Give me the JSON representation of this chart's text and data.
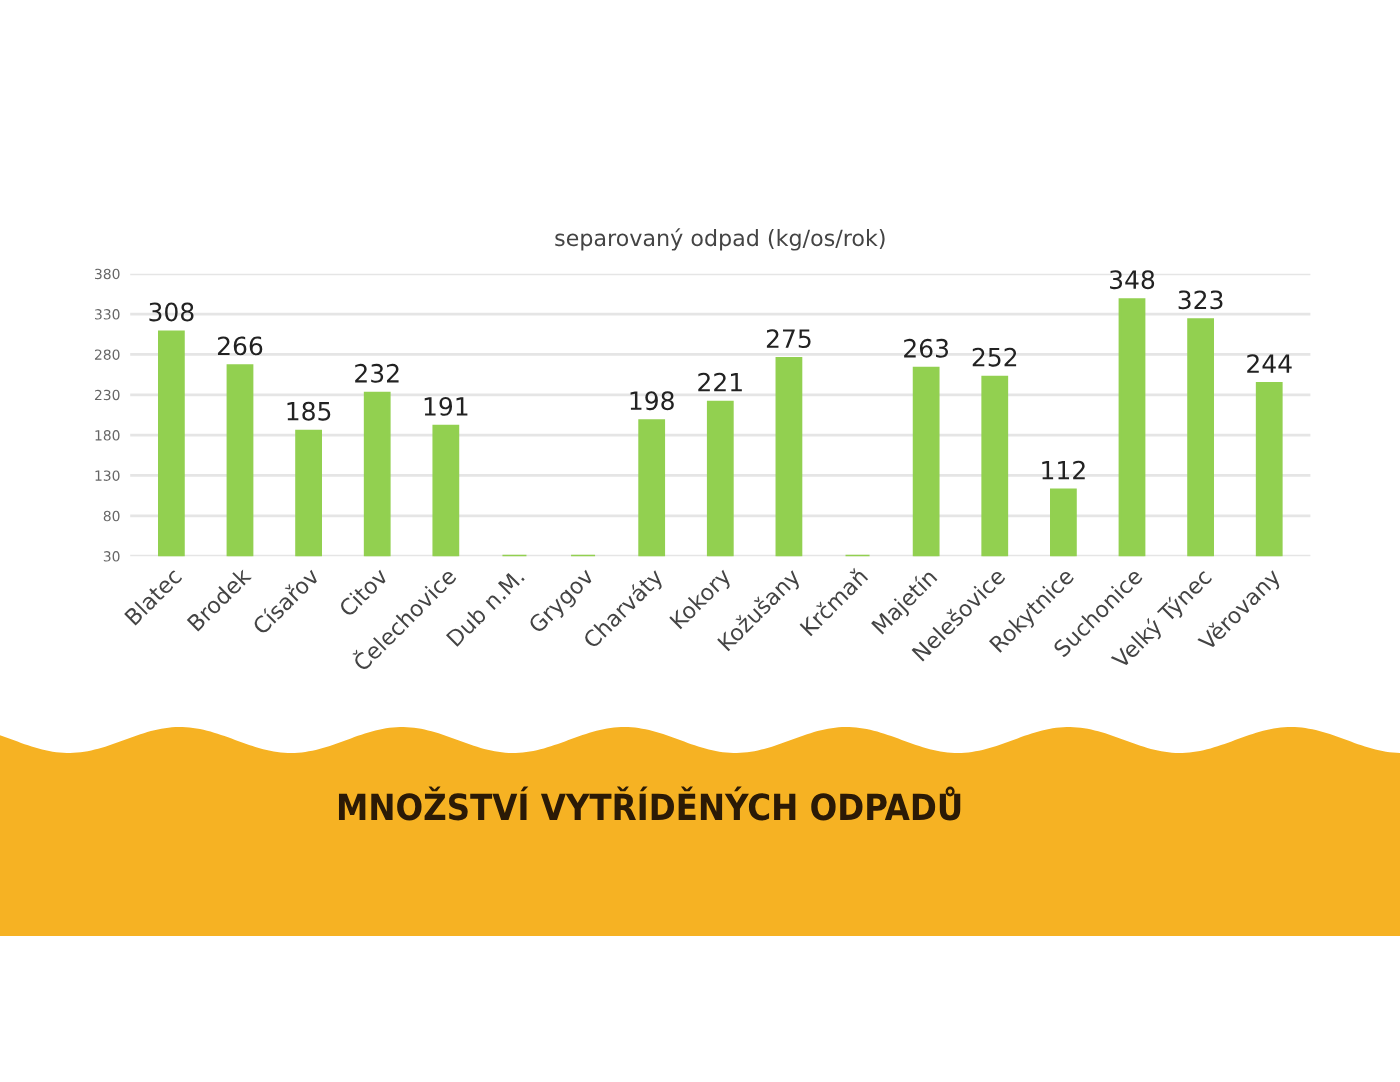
{
  "chart_data": {
    "type": "bar",
    "title": "separovaný odpad (kg/os/rok)",
    "categories": [
      "Blatec",
      "Brodek",
      "Císařov",
      "Citov",
      "Čelechovice",
      "Dub n.M.",
      "Grygov",
      "Charváty",
      "Kokory",
      "Kožušany",
      "Krčmaň",
      "Majetín",
      "Nelešovice",
      "Rokytnice",
      "Suchonice",
      "Velký Týnec",
      "Věrovany"
    ],
    "values": [
      308,
      266,
      185,
      232,
      191,
      30,
      30,
      198,
      221,
      275,
      30,
      263,
      252,
      112,
      348,
      323,
      244
    ],
    "value_labels": [
      "308",
      "266",
      "185",
      "232",
      "191",
      null,
      null,
      "198",
      "221",
      "275",
      null,
      "263",
      "252",
      "112",
      "348",
      "323",
      "244"
    ],
    "color": "#92d050",
    "ylim": [
      30,
      380
    ],
    "yticks": [
      30,
      80,
      130,
      180,
      230,
      280,
      330,
      380
    ],
    "grid": "y",
    "annotations": [
      "MNOŽSTVÍ VYTŘÍDĚNÝCH ODPADŮ"
    ]
  }
}
